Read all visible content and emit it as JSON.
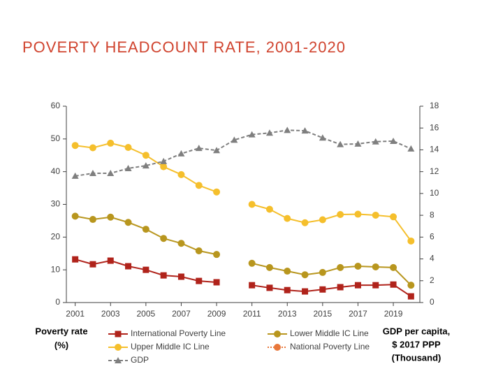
{
  "chart_data": {
    "type": "line",
    "title": "POVERTY HEADCOUNT RATE, 2001-2020",
    "y_label": [
      "Poverty rate",
      "(%)"
    ],
    "y2_label": [
      "GDP per capita,",
      "$ 2017 PPP",
      "(Thousand)"
    ],
    "x": [
      2001,
      2002,
      2003,
      2004,
      2005,
      2006,
      2007,
      2008,
      2009,
      2010,
      2011,
      2012,
      2013,
      2014,
      2015,
      2016,
      2017,
      2018,
      2019,
      2020
    ],
    "xlim": [
      2000.5,
      2020.5
    ],
    "xticks": [
      2001,
      2003,
      2005,
      2007,
      2009,
      2011,
      2013,
      2015,
      2017,
      2019
    ],
    "ylim": [
      0,
      60
    ],
    "yticks": [
      0,
      10,
      20,
      30,
      40,
      50,
      60
    ],
    "y2lim": [
      0,
      18
    ],
    "y2ticks": [
      0,
      2,
      4,
      6,
      8,
      10,
      12,
      14,
      16,
      18
    ],
    "grid": false,
    "series": [
      {
        "name": "International Poverty Line",
        "color": "#b0231b",
        "marker": "square",
        "dash": "solid",
        "values": [
          13.2,
          11.7,
          12.8,
          11.1,
          10.0,
          8.3,
          7.9,
          6.6,
          6.2,
          null,
          5.3,
          4.5,
          3.8,
          3.4,
          4.0,
          4.7,
          5.3,
          5.3,
          5.5,
          1.9
        ]
      },
      {
        "name": "Lower Middle IC Line",
        "color": "#b8961e",
        "marker": "circle",
        "dash": "solid",
        "values": [
          26.4,
          25.4,
          26.1,
          24.5,
          22.4,
          19.6,
          18.1,
          15.8,
          14.7,
          null,
          12.0,
          10.7,
          9.6,
          8.5,
          9.2,
          10.7,
          11.1,
          10.9,
          10.7,
          5.3
        ]
      },
      {
        "name": "Upper Middle IC Line",
        "color": "#f5bf2c",
        "marker": "circle",
        "dash": "solid",
        "values": [
          48.0,
          47.3,
          48.7,
          47.4,
          45.0,
          41.5,
          39.1,
          35.8,
          33.8,
          null,
          30.0,
          28.5,
          25.7,
          24.4,
          25.3,
          26.9,
          27.0,
          26.7,
          26.2,
          18.8
        ]
      },
      {
        "name": "National Poverty Line",
        "color": "#e8773a",
        "marker": "circle",
        "dash": "dotted",
        "values": [
          null,
          null,
          null,
          null,
          null,
          null,
          null,
          null,
          null,
          null,
          null,
          null,
          null,
          null,
          null,
          null,
          null,
          null,
          null,
          null
        ]
      },
      {
        "name": "GDP",
        "color": "#7f7f7f",
        "marker": "triangle",
        "dash": "dashed",
        "axis": "y2",
        "values": [
          11.6,
          11.85,
          11.85,
          12.3,
          12.55,
          12.95,
          13.65,
          14.15,
          13.95,
          14.9,
          15.4,
          15.55,
          15.8,
          15.75,
          15.1,
          14.5,
          14.55,
          14.75,
          14.8,
          14.1
        ]
      }
    ]
  }
}
